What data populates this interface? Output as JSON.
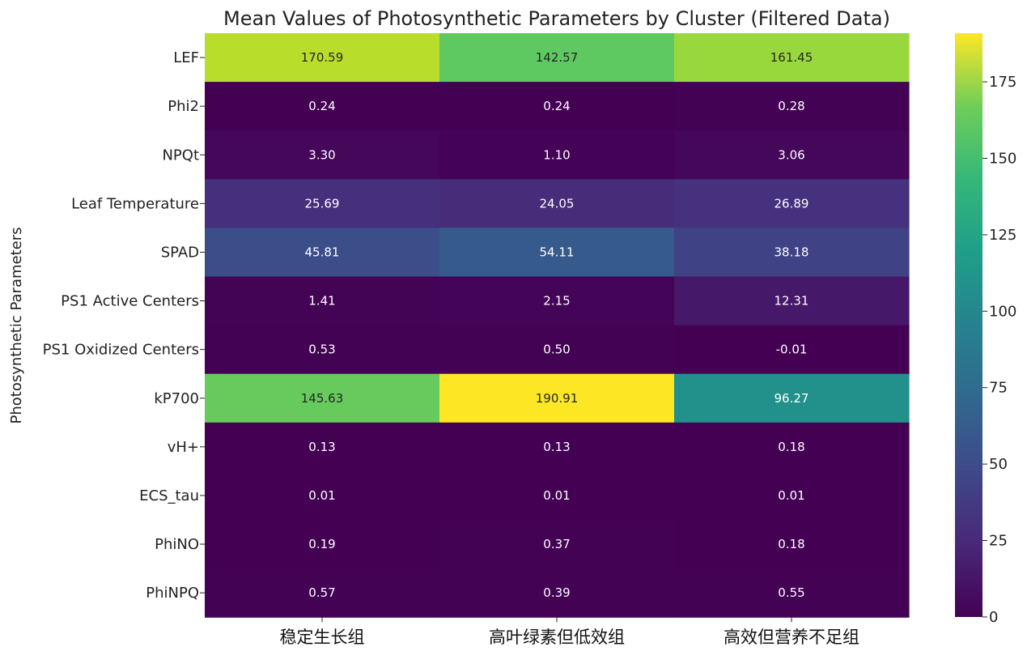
{
  "chart_data": {
    "type": "heatmap",
    "title": "Mean Values of Photosynthetic Parameters by Cluster (Filtered Data)",
    "ylabel": "Photosynthetic Parameters",
    "xlabel": "",
    "columns": [
      "稳定生长组",
      "高叶绿素但低效组",
      "高效但营养不足组"
    ],
    "rows": [
      "LEF",
      "Phi2",
      "NPQt",
      "Leaf Temperature",
      "SPAD",
      "PS1 Active Centers",
      "PS1 Oxidized Centers",
      "kP700",
      "vH+",
      "ECS_tau",
      "PhiNO",
      "PhiNPQ"
    ],
    "values": [
      [
        170.59,
        142.57,
        161.45
      ],
      [
        0.24,
        0.24,
        0.28
      ],
      [
        3.3,
        1.1,
        3.06
      ],
      [
        25.69,
        24.05,
        26.89
      ],
      [
        45.81,
        54.11,
        38.18
      ],
      [
        1.41,
        2.15,
        12.31
      ],
      [
        0.53,
        0.5,
        -0.01
      ],
      [
        145.63,
        190.91,
        96.27
      ],
      [
        0.13,
        0.13,
        0.18
      ],
      [
        0.01,
        0.01,
        0.01
      ],
      [
        0.19,
        0.37,
        0.18
      ],
      [
        0.57,
        0.39,
        0.55
      ]
    ],
    "value_format": "2 decimals",
    "colormap": "viridis",
    "vmin": -0.01,
    "vmax": 190.91,
    "colorbar_ticks": [
      0,
      25,
      50,
      75,
      100,
      125,
      150,
      175
    ],
    "colorbar_position": "right",
    "grid": false
  }
}
